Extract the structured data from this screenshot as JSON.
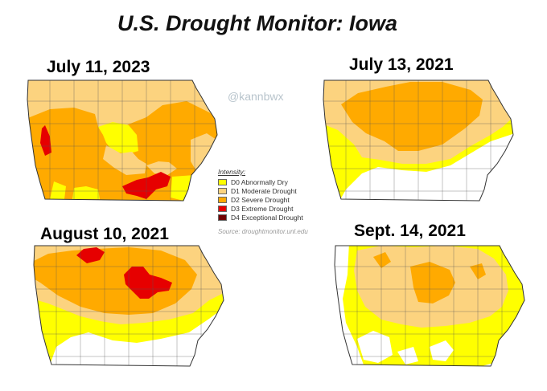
{
  "title": "U.S. Drought Monitor: Iowa",
  "watermark": "@kannbwx",
  "legend": {
    "title": "Intensity:",
    "items": [
      {
        "label": "D0 Abnormally Dry",
        "color": "#ffff00"
      },
      {
        "label": "D1 Moderate Drought",
        "color": "#fcd37f"
      },
      {
        "label": "D2 Severe Drought",
        "color": "#ffaa00"
      },
      {
        "label": "D3 Extreme Drought",
        "color": "#e60000"
      },
      {
        "label": "D4 Exceptional Drought",
        "color": "#730000"
      }
    ]
  },
  "source": "Source: droughtmonitor.unl.edu",
  "maps": [
    {
      "label": "July 11, 2023"
    },
    {
      "label": "July 13, 2021"
    },
    {
      "label": "August 10, 2021"
    },
    {
      "label": "Sept. 14, 2021"
    }
  ]
}
